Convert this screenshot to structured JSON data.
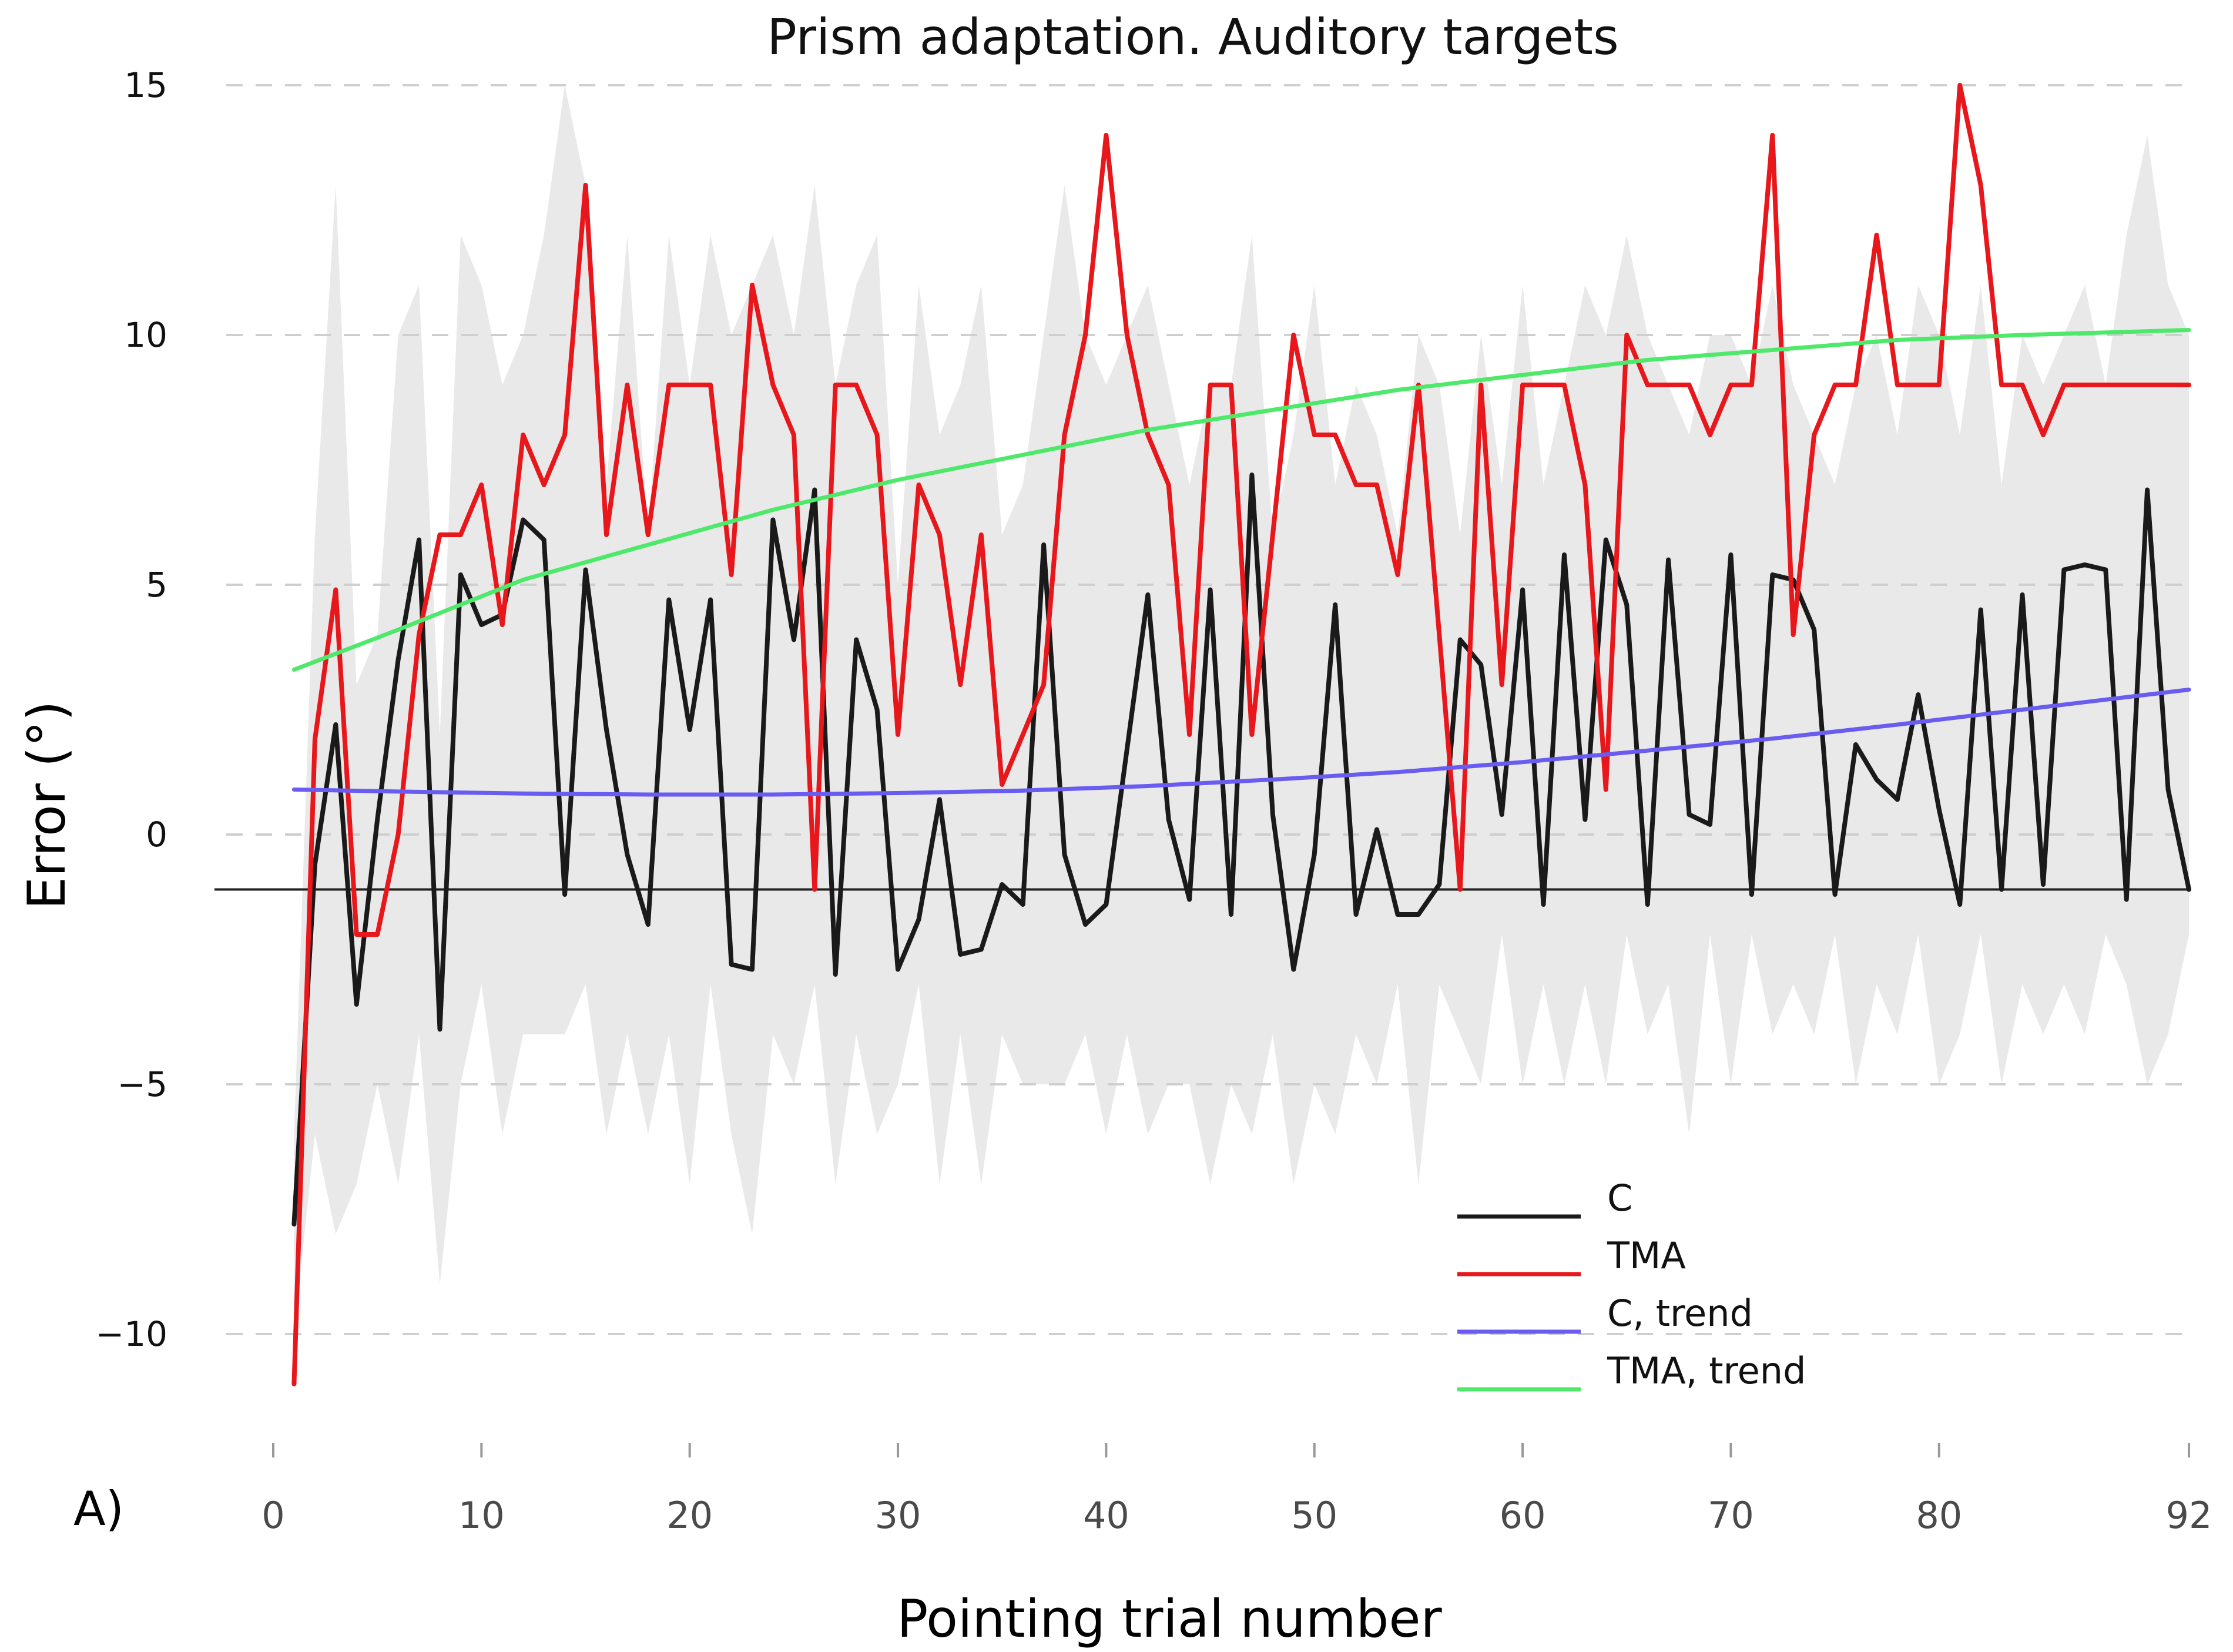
{
  "chart_data": {
    "type": "line",
    "title": "Prism adaptation. Auditory targets",
    "xlabel": "Pointing trial number",
    "ylabel": "Error (°)",
    "panel_label": "A)",
    "xlim": [
      0,
      92
    ],
    "ylim": [
      -11,
      15
    ],
    "x_ticks": [
      0,
      10,
      20,
      30,
      40,
      50,
      60,
      70,
      80,
      92
    ],
    "y_ticks": [
      15,
      10,
      5,
      0,
      -5,
      -10
    ],
    "y_tick_labels": [
      "15",
      "10",
      "5",
      "0",
      "−5",
      "−10"
    ],
    "grid": "horizontal dashed",
    "zero_line_value": -1.1,
    "legend_position": "bottom-right",
    "band": {
      "name": "variability band (grey)",
      "x": [
        1,
        2,
        3,
        4,
        5,
        6,
        7,
        8,
        9,
        10,
        11,
        12,
        13,
        14,
        15,
        16,
        17,
        18,
        19,
        20,
        21,
        22,
        23,
        24,
        25,
        26,
        27,
        28,
        29,
        30,
        31,
        32,
        33,
        34,
        35,
        36,
        37,
        38,
        39,
        40,
        41,
        42,
        43,
        44,
        45,
        46,
        47,
        48,
        49,
        50,
        51,
        52,
        53,
        54,
        55,
        56,
        57,
        58,
        59,
        60,
        61,
        62,
        63,
        64,
        65,
        66,
        67,
        68,
        69,
        70,
        71,
        72,
        73,
        74,
        75,
        76,
        77,
        78,
        79,
        80,
        81,
        82,
        83,
        84,
        85,
        86,
        87,
        88,
        89,
        90,
        91,
        92
      ],
      "upper": [
        -6,
        6,
        13,
        3,
        4,
        10,
        11,
        2,
        12,
        11,
        9,
        10,
        12,
        15,
        13,
        7,
        12,
        6,
        12,
        9,
        12,
        10,
        11,
        12,
        10,
        13,
        9,
        11,
        12,
        5,
        11,
        8,
        9,
        11,
        6,
        7,
        10,
        13,
        10,
        9,
        10,
        11,
        9,
        7,
        9,
        9,
        12,
        6,
        8,
        11,
        7,
        9,
        8,
        6,
        10,
        9,
        6,
        10,
        7,
        11,
        7,
        9,
        11,
        10,
        12,
        10,
        9,
        8,
        10,
        10,
        9,
        11,
        9,
        8,
        7,
        9,
        10,
        8,
        11,
        10,
        8,
        11,
        7,
        10,
        9,
        10,
        11,
        9,
        12,
        14,
        11,
        10
      ],
      "lower": [
        -10,
        -6,
        -8,
        -7,
        -5,
        -7,
        -4,
        -9,
        -5,
        -3,
        -6,
        -4,
        -4,
        -4,
        -3,
        -6,
        -4,
        -6,
        -4,
        -7,
        -3,
        -6,
        -8,
        -4,
        -5,
        -3,
        -7,
        -4,
        -6,
        -5,
        -3,
        -7,
        -4,
        -7,
        -4,
        -5,
        -5,
        -5,
        -4,
        -6,
        -4,
        -6,
        -5,
        -5,
        -7,
        -5,
        -6,
        -4,
        -7,
        -5,
        -6,
        -4,
        -5,
        -3,
        -7,
        -3,
        -4,
        -5,
        -2,
        -5,
        -3,
        -5,
        -3,
        -5,
        -2,
        -4,
        -3,
        -6,
        -2,
        -5,
        -2,
        -4,
        -3,
        -4,
        -2,
        -5,
        -3,
        -4,
        -2,
        -5,
        -4,
        -2,
        -5,
        -3,
        -4,
        -3,
        -4,
        -2,
        -3,
        -5,
        -4,
        -2
      ]
    },
    "series": [
      {
        "name": "C",
        "color": "#1a1a1a",
        "x": [
          1,
          2,
          3,
          4,
          5,
          6,
          7,
          8,
          9,
          10,
          11,
          12,
          13,
          14,
          15,
          16,
          17,
          18,
          19,
          20,
          21,
          22,
          23,
          24,
          25,
          26,
          27,
          28,
          29,
          30,
          31,
          32,
          33,
          34,
          35,
          36,
          37,
          38,
          39,
          40,
          41,
          42,
          43,
          44,
          45,
          46,
          47,
          48,
          49,
          50,
          51,
          52,
          53,
          54,
          55,
          56,
          57,
          58,
          59,
          60,
          61,
          62,
          63,
          64,
          65,
          66,
          67,
          68,
          69,
          70,
          71,
          72,
          73,
          74,
          75,
          76,
          77,
          78,
          79,
          80,
          81,
          82,
          83,
          84,
          85,
          86,
          87,
          88,
          89,
          90,
          91,
          92
        ],
        "y": [
          -7.8,
          -0.6,
          2.2,
          -3.4,
          0.3,
          3.5,
          5.9,
          -3.9,
          5.2,
          4.2,
          4.4,
          6.3,
          5.9,
          -1.2,
          5.3,
          2.1,
          -0.4,
          -1.8,
          4.7,
          2.1,
          4.7,
          -2.6,
          -2.7,
          6.3,
          3.9,
          6.9,
          -2.8,
          3.9,
          2.5,
          -2.7,
          -1.7,
          0.7,
          -2.4,
          -2.3,
          -1,
          -1.4,
          5.8,
          -0.4,
          -1.8,
          -1.4,
          1.7,
          4.8,
          0.3,
          -1.3,
          4.9,
          -1.6,
          7.2,
          0.4,
          -2.7,
          -0.4,
          4.6,
          -1.6,
          0.1,
          -1.6,
          -1.6,
          -1,
          3.9,
          3.4,
          0.4,
          4.9,
          -1.4,
          5.6,
          0.3,
          5.9,
          4.6,
          -1.4,
          5.5,
          0.4,
          0.2,
          5.6,
          -1.2,
          5.2,
          5.1,
          4.1,
          -1.2,
          1.8,
          1.1,
          0.7,
          2.8,
          0.5,
          -1.4,
          4.5,
          -1.1,
          4.8,
          -1,
          5.3,
          5.4,
          5.3,
          -1.3,
          6.9,
          0.9,
          -1.1
        ]
      },
      {
        "name": "TMA",
        "color": "#e8171b",
        "x": [
          1,
          2,
          3,
          4,
          5,
          6,
          7,
          8,
          9,
          10,
          11,
          12,
          13,
          14,
          15,
          16,
          17,
          18,
          19,
          20,
          21,
          22,
          23,
          24,
          25,
          26,
          27,
          28,
          29,
          30,
          31,
          32,
          33,
          34,
          35,
          36,
          37,
          38,
          39,
          40,
          41,
          42,
          43,
          44,
          45,
          46,
          47,
          48,
          49,
          50,
          51,
          52,
          53,
          54,
          55,
          56,
          57,
          58,
          59,
          60,
          61,
          62,
          63,
          64,
          65,
          66,
          67,
          68,
          69,
          70,
          71,
          72,
          73,
          74,
          75,
          76,
          77,
          78,
          79,
          80,
          81,
          82,
          83,
          84,
          85,
          86,
          87,
          88,
          89,
          90,
          91,
          92
        ],
        "y": [
          -11,
          1.9,
          4.9,
          -2,
          -2,
          0,
          4,
          6,
          6,
          7,
          4.2,
          8,
          7,
          8,
          13,
          6,
          9,
          6,
          9,
          9,
          9,
          5.2,
          11,
          9,
          8,
          -1.1,
          9,
          9,
          8,
          2,
          7,
          6,
          3,
          6,
          1,
          2,
          3,
          8,
          10,
          14,
          10,
          8,
          7,
          2,
          9,
          9,
          2,
          6,
          10,
          8,
          8,
          7,
          7,
          5.2,
          9,
          4,
          -1.1,
          9,
          3,
          9,
          9,
          9,
          7,
          0.9,
          10,
          9,
          9,
          9,
          8,
          9,
          9,
          14,
          4,
          8,
          9,
          9,
          12,
          9,
          9,
          9,
          15,
          13,
          9,
          9,
          8,
          9,
          9,
          9,
          9,
          9,
          9,
          9
        ]
      },
      {
        "name": "C, trend",
        "color": "#6a5cf0",
        "x": [
          1,
          6,
          12,
          18,
          24,
          30,
          36,
          42,
          48,
          54,
          60,
          66,
          72,
          78,
          84,
          92
        ],
        "y": [
          0.9,
          0.86,
          0.82,
          0.8,
          0.8,
          0.83,
          0.88,
          0.97,
          1.1,
          1.25,
          1.45,
          1.68,
          1.92,
          2.2,
          2.5,
          2.9
        ]
      },
      {
        "name": "TMA, trend",
        "color": "#4ee86a",
        "x": [
          1,
          6,
          12,
          18,
          24,
          30,
          36,
          42,
          48,
          54,
          60,
          66,
          72,
          78,
          84,
          92
        ],
        "y": [
          3.3,
          4.1,
          5.1,
          5.8,
          6.5,
          7.1,
          7.6,
          8.1,
          8.5,
          8.9,
          9.2,
          9.5,
          9.7,
          9.9,
          10,
          10.1
        ]
      }
    ]
  }
}
